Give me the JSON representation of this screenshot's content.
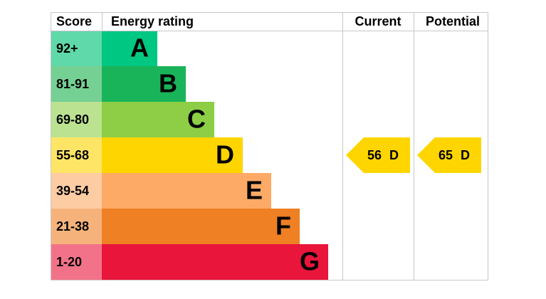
{
  "header": {
    "score": "Score",
    "rating": "Energy rating",
    "current": "Current",
    "potential": "Potential"
  },
  "rows": [
    {
      "score": "92+",
      "band": "A",
      "color": "#00c781",
      "tint": "#5fd9a9"
    },
    {
      "score": "81-91",
      "band": "B",
      "color": "#19b459",
      "tint": "#75d094"
    },
    {
      "score": "69-80",
      "band": "C",
      "color": "#8dce46",
      "tint": "#bbe291"
    },
    {
      "score": "55-68",
      "band": "D",
      "color": "#ffd500",
      "tint": "#ffe566"
    },
    {
      "score": "39-54",
      "band": "E",
      "color": "#fcaa65",
      "tint": "#fdcca3"
    },
    {
      "score": "21-38",
      "band": "F",
      "color": "#ef8023",
      "tint": "#f5b37b"
    },
    {
      "score": "1-20",
      "band": "G",
      "color": "#e9153b",
      "tint": "#f27389"
    }
  ],
  "current": {
    "value": 56,
    "band": "D",
    "color": "#ffd500"
  },
  "potential": {
    "value": 65,
    "band": "D",
    "color": "#ffd500"
  }
}
